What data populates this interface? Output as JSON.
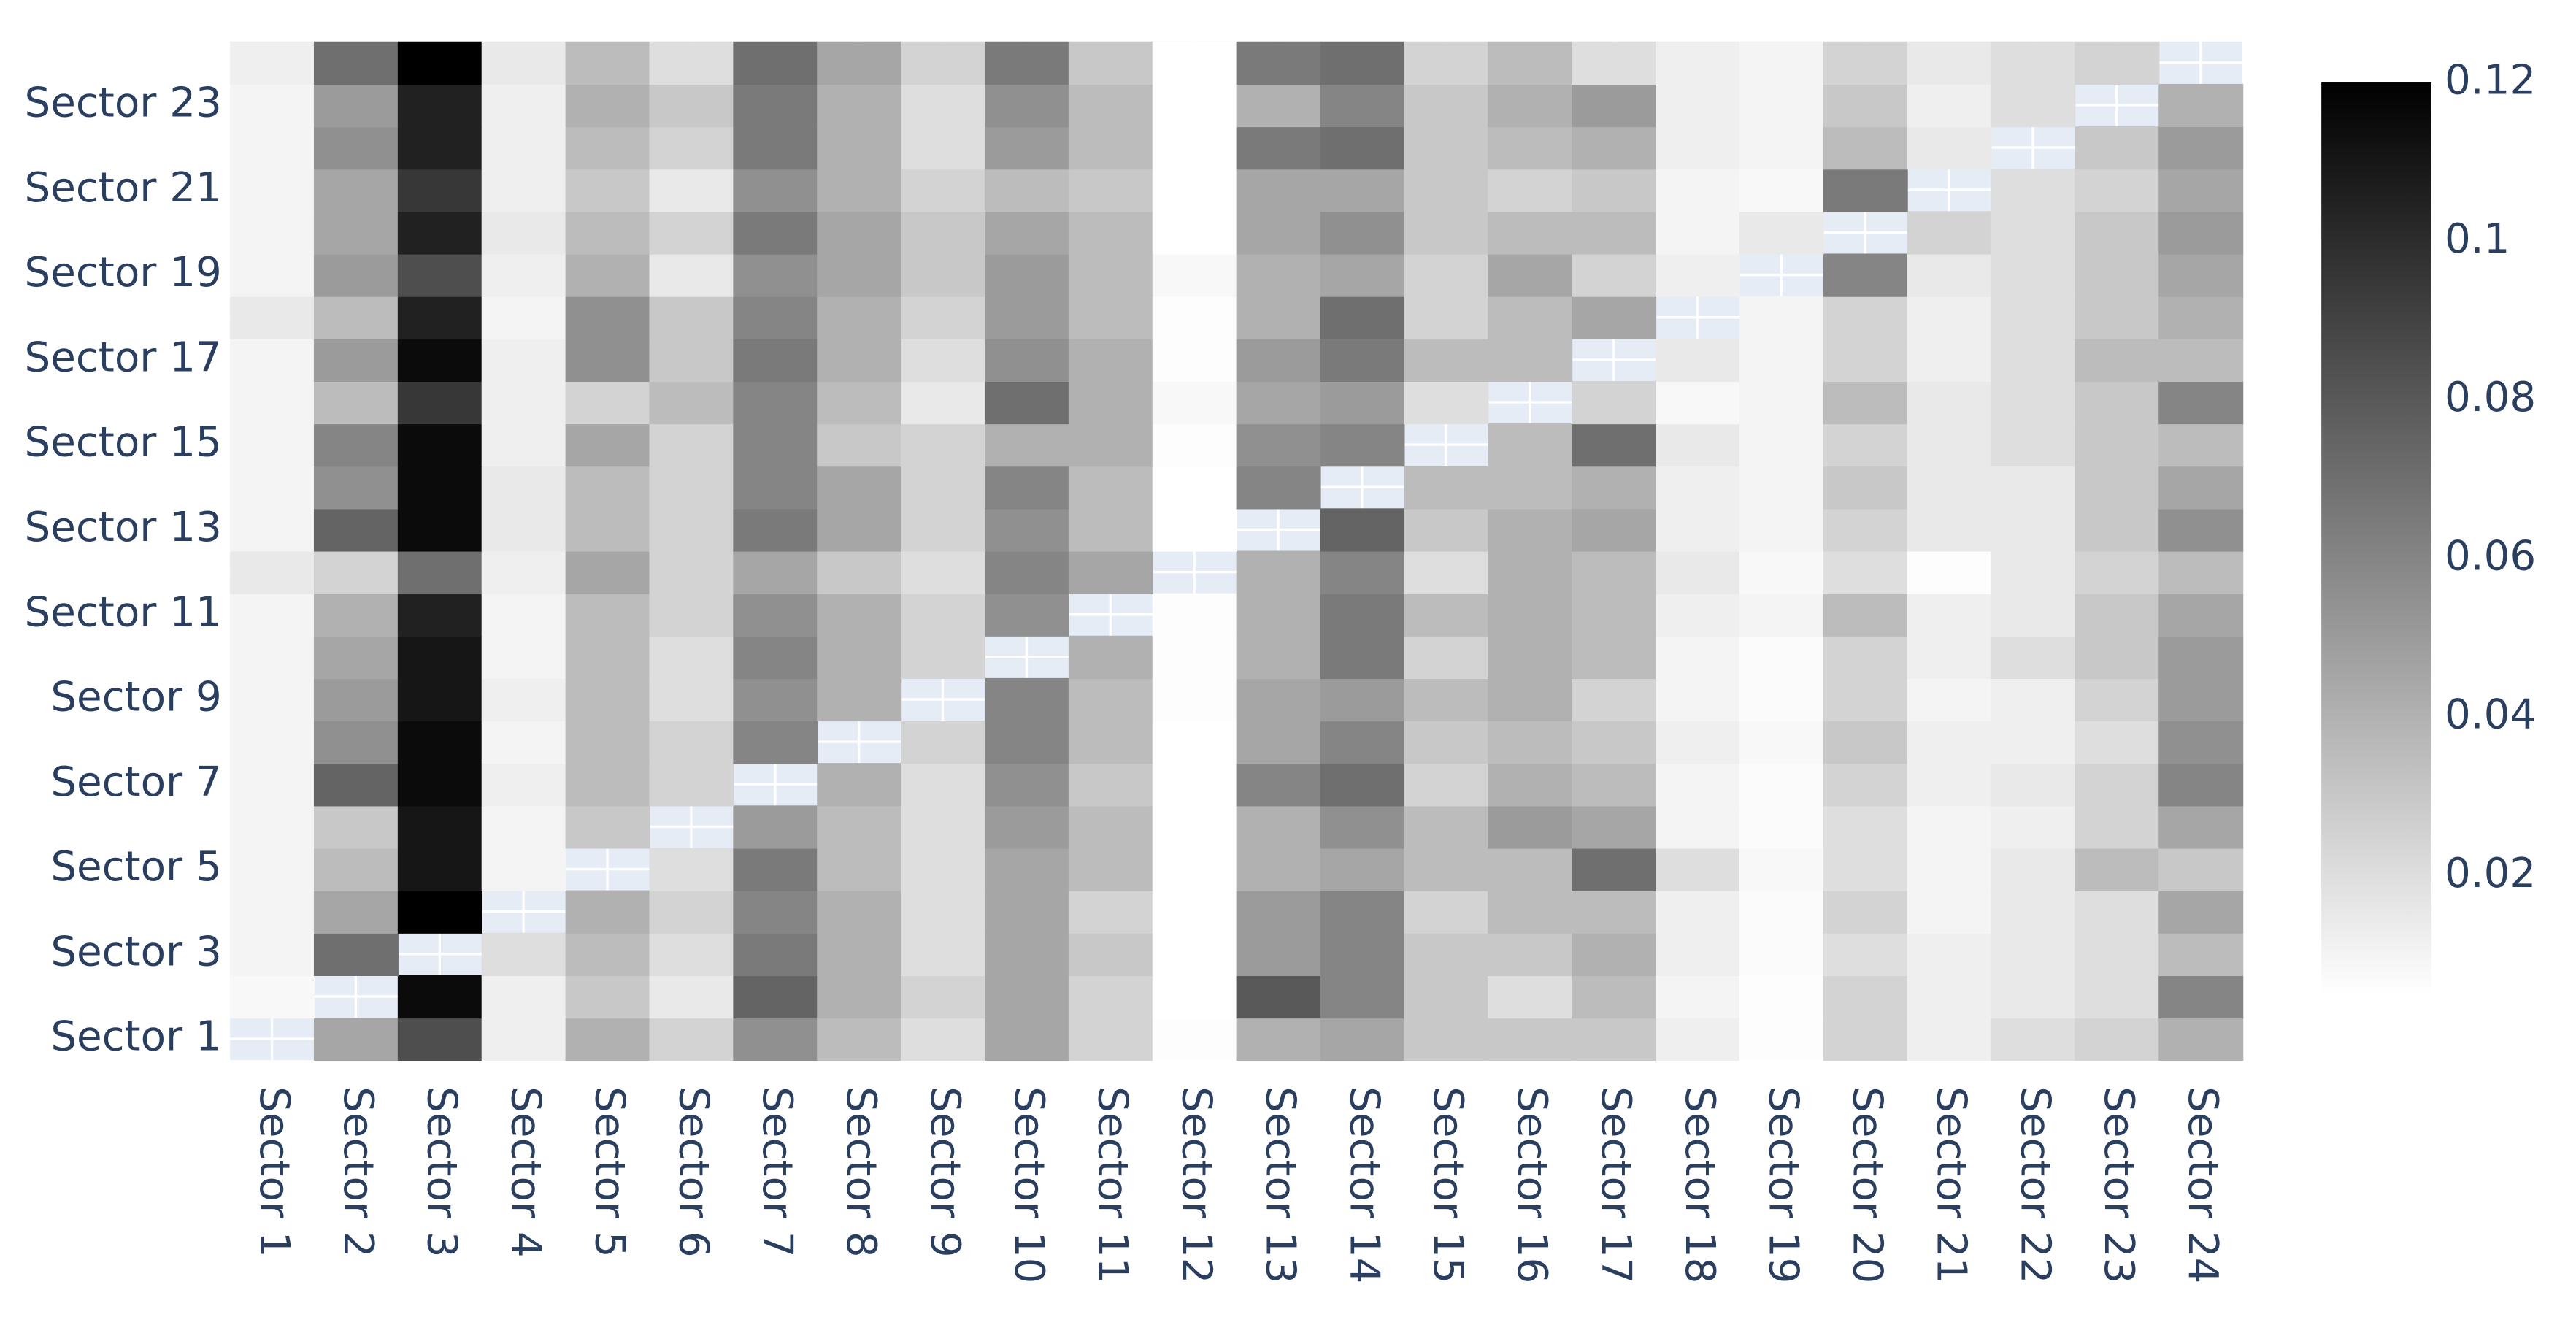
{
  "chart_data": {
    "type": "heatmap",
    "x": [
      "Sector 1",
      "Sector 2",
      "Sector 3",
      "Sector 4",
      "Sector 5",
      "Sector 6",
      "Sector 7",
      "Sector 8",
      "Sector 9",
      "Sector 10",
      "Sector 11",
      "Sector 12",
      "Sector 13",
      "Sector 14",
      "Sector 15",
      "Sector 16",
      "Sector 17",
      "Sector 18",
      "Sector 19",
      "Sector 20",
      "Sector 21",
      "Sector 22",
      "Sector 23",
      "Sector 24"
    ],
    "y": [
      "Sector 1",
      null,
      "Sector 3",
      null,
      "Sector 5",
      null,
      "Sector 7",
      null,
      "Sector 9",
      null,
      "Sector 11",
      null,
      "Sector 13",
      null,
      "Sector 15",
      null,
      "Sector 17",
      null,
      "Sector 19",
      null,
      "Sector 21",
      null,
      "Sector 23",
      null
    ],
    "z": [
      [
        null,
        0.045,
        0.085,
        0.012,
        0.04,
        0.025,
        0.055,
        0.035,
        0.02,
        0.045,
        0.025,
        0.006,
        0.04,
        0.045,
        0.03,
        0.03,
        0.03,
        0.012,
        0.006,
        0.025,
        0.012,
        0.02,
        0.025,
        0.04
      ],
      [
        0.008,
        null,
        0.115,
        0.012,
        0.03,
        0.015,
        0.075,
        0.04,
        0.025,
        0.045,
        0.025,
        0.005,
        0.08,
        0.06,
        0.03,
        0.02,
        0.035,
        0.01,
        0.006,
        0.025,
        0.012,
        0.015,
        0.02,
        0.06
      ],
      [
        0.01,
        0.07,
        null,
        0.02,
        0.035,
        0.02,
        0.065,
        0.04,
        0.02,
        0.045,
        0.03,
        0.005,
        0.05,
        0.06,
        0.03,
        0.03,
        0.04,
        0.012,
        0.007,
        0.02,
        0.012,
        0.015,
        0.02,
        0.035
      ],
      [
        0.01,
        0.045,
        0.12,
        null,
        0.04,
        0.025,
        0.06,
        0.04,
        0.02,
        0.045,
        0.025,
        0.005,
        0.05,
        0.06,
        0.025,
        0.035,
        0.035,
        0.012,
        0.007,
        0.025,
        0.01,
        0.015,
        0.02,
        0.045
      ],
      [
        0.01,
        0.035,
        0.11,
        0.01,
        null,
        0.02,
        0.065,
        0.035,
        0.02,
        0.045,
        0.035,
        0.005,
        0.04,
        0.045,
        0.035,
        0.035,
        0.07,
        0.02,
        0.008,
        0.02,
        0.01,
        0.015,
        0.035,
        0.03
      ],
      [
        0.01,
        0.03,
        0.11,
        0.01,
        0.03,
        null,
        0.05,
        0.035,
        0.02,
        0.05,
        0.035,
        0.005,
        0.04,
        0.055,
        0.035,
        0.05,
        0.045,
        0.01,
        0.007,
        0.02,
        0.01,
        0.012,
        0.025,
        0.045
      ],
      [
        0.01,
        0.075,
        0.115,
        0.012,
        0.035,
        0.025,
        null,
        0.04,
        0.02,
        0.055,
        0.03,
        0.005,
        0.06,
        0.07,
        0.025,
        0.04,
        0.035,
        0.01,
        0.007,
        0.025,
        0.012,
        0.015,
        0.025,
        0.06
      ],
      [
        0.01,
        0.055,
        0.115,
        0.01,
        0.035,
        0.025,
        0.06,
        null,
        0.025,
        0.06,
        0.035,
        0.005,
        0.045,
        0.06,
        0.03,
        0.035,
        0.03,
        0.012,
        0.008,
        0.03,
        0.012,
        0.012,
        0.02,
        0.055
      ],
      [
        0.01,
        0.05,
        0.11,
        0.012,
        0.035,
        0.02,
        0.055,
        0.04,
        null,
        0.06,
        0.035,
        0.006,
        0.045,
        0.05,
        0.035,
        0.04,
        0.025,
        0.01,
        0.007,
        0.025,
        0.01,
        0.012,
        0.025,
        0.05
      ],
      [
        0.01,
        0.045,
        0.11,
        0.01,
        0.035,
        0.02,
        0.06,
        0.04,
        0.025,
        null,
        0.04,
        0.006,
        0.04,
        0.065,
        0.025,
        0.04,
        0.035,
        0.01,
        0.007,
        0.025,
        0.012,
        0.02,
        0.03,
        0.05
      ],
      [
        0.01,
        0.04,
        0.105,
        0.01,
        0.035,
        0.025,
        0.055,
        0.04,
        0.025,
        0.055,
        null,
        0.006,
        0.04,
        0.065,
        0.035,
        0.04,
        0.035,
        0.012,
        0.01,
        0.035,
        0.012,
        0.015,
        0.03,
        0.045
      ],
      [
        0.015,
        0.025,
        0.07,
        0.012,
        0.045,
        0.025,
        0.045,
        0.03,
        0.02,
        0.06,
        0.045,
        null,
        0.04,
        0.06,
        0.02,
        0.04,
        0.035,
        0.015,
        0.008,
        0.02,
        0.006,
        0.015,
        0.025,
        0.035
      ],
      [
        0.01,
        0.075,
        0.115,
        0.015,
        0.035,
        0.025,
        0.065,
        0.045,
        0.025,
        0.055,
        0.035,
        0.005,
        null,
        0.075,
        0.03,
        0.04,
        0.045,
        0.012,
        0.01,
        0.025,
        0.015,
        0.015,
        0.03,
        0.055
      ],
      [
        0.01,
        0.055,
        0.115,
        0.015,
        0.035,
        0.025,
        0.06,
        0.045,
        0.025,
        0.06,
        0.035,
        0.005,
        0.06,
        null,
        0.035,
        0.035,
        0.04,
        0.012,
        0.01,
        0.03,
        0.015,
        0.015,
        0.03,
        0.045
      ],
      [
        0.01,
        0.06,
        0.115,
        0.012,
        0.045,
        0.025,
        0.06,
        0.03,
        0.025,
        0.04,
        0.04,
        0.006,
        0.055,
        0.06,
        null,
        0.035,
        0.07,
        0.015,
        0.01,
        0.025,
        0.015,
        0.02,
        0.03,
        0.035
      ],
      [
        0.01,
        0.035,
        0.095,
        0.012,
        0.025,
        0.035,
        0.06,
        0.035,
        0.015,
        0.07,
        0.04,
        0.008,
        0.045,
        0.05,
        0.02,
        null,
        0.025,
        0.008,
        0.01,
        0.035,
        0.015,
        0.02,
        0.03,
        0.06
      ],
      [
        0.01,
        0.05,
        0.115,
        0.012,
        0.055,
        0.03,
        0.065,
        0.04,
        0.02,
        0.055,
        0.04,
        0.006,
        0.05,
        0.065,
        0.035,
        0.035,
        null,
        0.015,
        0.01,
        0.025,
        0.012,
        0.02,
        0.035,
        0.035
      ],
      [
        0.015,
        0.035,
        0.105,
        0.01,
        0.055,
        0.03,
        0.06,
        0.04,
        0.025,
        0.05,
        0.035,
        0.006,
        0.04,
        0.07,
        0.025,
        0.035,
        0.045,
        null,
        0.01,
        0.025,
        0.012,
        0.02,
        0.03,
        0.04
      ],
      [
        0.01,
        0.05,
        0.085,
        0.012,
        0.04,
        0.015,
        0.055,
        0.045,
        0.03,
        0.05,
        0.035,
        0.008,
        0.04,
        0.045,
        0.025,
        0.045,
        0.025,
        0.012,
        null,
        0.06,
        0.015,
        0.02,
        0.03,
        0.045
      ],
      [
        0.01,
        0.045,
        0.105,
        0.015,
        0.035,
        0.025,
        0.065,
        0.045,
        0.03,
        0.045,
        0.035,
        0.005,
        0.045,
        0.055,
        0.03,
        0.035,
        0.035,
        0.01,
        0.015,
        null,
        0.025,
        0.02,
        0.03,
        0.05
      ],
      [
        0.01,
        0.045,
        0.095,
        0.012,
        0.03,
        0.015,
        0.055,
        0.04,
        0.025,
        0.035,
        0.03,
        0.002,
        0.045,
        0.045,
        0.03,
        0.025,
        0.03,
        0.01,
        0.008,
        0.065,
        null,
        0.02,
        0.025,
        0.045
      ],
      [
        0.01,
        0.055,
        0.105,
        0.012,
        0.035,
        0.025,
        0.065,
        0.04,
        0.02,
        0.05,
        0.035,
        0.003,
        0.065,
        0.07,
        0.03,
        0.035,
        0.04,
        0.012,
        0.01,
        0.035,
        0.015,
        null,
        0.03,
        0.05
      ],
      [
        0.01,
        0.05,
        0.105,
        0.012,
        0.04,
        0.03,
        0.065,
        0.04,
        0.02,
        0.055,
        0.035,
        0.005,
        0.04,
        0.06,
        0.03,
        0.04,
        0.05,
        0.012,
        0.01,
        0.03,
        0.012,
        0.02,
        null,
        0.04
      ],
      [
        0.012,
        0.07,
        0.12,
        0.015,
        0.035,
        0.02,
        0.07,
        0.045,
        0.025,
        0.065,
        0.03,
        0.005,
        0.065,
        0.07,
        0.025,
        0.035,
        0.02,
        0.012,
        0.01,
        0.025,
        0.015,
        0.02,
        0.025,
        null
      ]
    ],
    "colorscale": [
      "#ffffff",
      "#000000"
    ],
    "zlim": [
      0.005,
      0.12
    ],
    "zticks": [
      0.02,
      0.04,
      0.06,
      0.08,
      0.1,
      0.12
    ],
    "plot_bgcolor": "#e5ecf6",
    "grid": true
  }
}
